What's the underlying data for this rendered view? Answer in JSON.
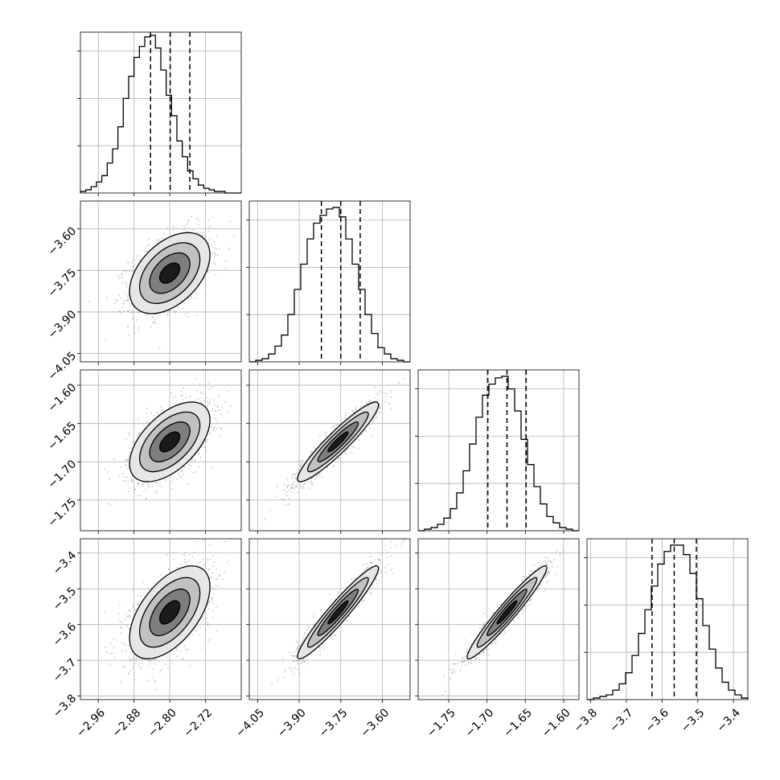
{
  "chart_data": {
    "type": "corner",
    "params": [
      {
        "id": "p0",
        "range": [
          -3.0,
          -2.64
        ],
        "ticks": [
          "-2.96",
          "-2.88",
          "-2.80",
          "-2.72"
        ],
        "tick_values": [
          -2.96,
          -2.88,
          -2.8,
          -2.72
        ],
        "quantiles": [
          -2.843,
          -2.799,
          -2.755
        ],
        "hist_heights": [
          0.01,
          0.02,
          0.04,
          0.07,
          0.11,
          0.19,
          0.28,
          0.42,
          0.6,
          0.74,
          0.86,
          0.93,
          0.99,
          1.0,
          0.92,
          0.78,
          0.62,
          0.49,
          0.33,
          0.23,
          0.14,
          0.09,
          0.05,
          0.03,
          0.02,
          0.01,
          0.01,
          0.0,
          0.0,
          0.0
        ]
      },
      {
        "id": "p1",
        "range": [
          -4.08,
          -3.5
        ],
        "ticks": [
          "-4.05",
          "-3.90",
          "-3.75",
          "-3.60"
        ],
        "tick_values": [
          -4.05,
          -3.9,
          -3.75,
          -3.6
        ],
        "quantiles": [
          -3.82,
          -3.75,
          -3.68
        ],
        "hist_heights": [
          0.0,
          0.01,
          0.02,
          0.05,
          0.1,
          0.17,
          0.3,
          0.46,
          0.62,
          0.78,
          0.88,
          0.93,
          0.97,
          0.98,
          0.92,
          0.78,
          0.62,
          0.46,
          0.3,
          0.18,
          0.09,
          0.05,
          0.02,
          0.01,
          0.0
        ]
      },
      {
        "id": "p2",
        "range": [
          -1.79,
          -1.58
        ],
        "ticks": [
          "-1.75",
          "-1.70",
          "-1.65",
          "-1.60"
        ],
        "tick_values": [
          -1.75,
          -1.7,
          -1.65,
          -1.6
        ],
        "quantiles": [
          -1.699,
          -1.674,
          -1.649
        ],
        "hist_heights": [
          0.0,
          0.01,
          0.02,
          0.04,
          0.08,
          0.14,
          0.24,
          0.38,
          0.55,
          0.72,
          0.86,
          0.93,
          0.97,
          0.98,
          0.9,
          0.76,
          0.58,
          0.42,
          0.28,
          0.17,
          0.09,
          0.05,
          0.02,
          0.01,
          0.0
        ]
      },
      {
        "id": "p3",
        "range": [
          -3.81,
          -3.36
        ],
        "ticks": [
          "-3.8",
          "-3.7",
          "-3.6",
          "-3.5",
          "-3.4"
        ],
        "tick_values": [
          -3.8,
          -3.7,
          -3.6,
          -3.5,
          -3.4
        ],
        "quantiles": [
          -3.628,
          -3.566,
          -3.504
        ],
        "hist_heights": [
          0.0,
          0.01,
          0.02,
          0.03,
          0.06,
          0.1,
          0.17,
          0.28,
          0.42,
          0.57,
          0.72,
          0.86,
          0.94,
          0.98,
          0.98,
          0.92,
          0.8,
          0.64,
          0.47,
          0.32,
          0.2,
          0.11,
          0.06,
          0.03,
          0.01
        ]
      }
    ],
    "pairs": [
      {
        "row": 1,
        "col": 0,
        "mean_x": -2.8,
        "mean_y": -3.76,
        "sd_x": 0.045,
        "sd_y": 0.073,
        "rho": 0.45
      },
      {
        "row": 2,
        "col": 0,
        "mean_x": -2.8,
        "mean_y": -1.674,
        "sd_x": 0.045,
        "sd_y": 0.026,
        "rho": 0.55
      },
      {
        "row": 2,
        "col": 1,
        "mean_x": -3.76,
        "mean_y": -1.674,
        "sd_x": 0.073,
        "sd_y": 0.026,
        "rho": 0.93
      },
      {
        "row": 3,
        "col": 0,
        "mean_x": -2.8,
        "mean_y": -3.566,
        "sd_x": 0.045,
        "sd_y": 0.065,
        "rho": 0.55
      },
      {
        "row": 3,
        "col": 1,
        "mean_x": -3.76,
        "mean_y": -3.566,
        "sd_x": 0.073,
        "sd_y": 0.065,
        "rho": 0.95
      },
      {
        "row": 3,
        "col": 2,
        "mean_x": -1.674,
        "mean_y": -3.566,
        "sd_x": 0.026,
        "sd_y": 0.065,
        "rho": 0.96
      }
    ],
    "contour_levels_sigma": [
      0.5,
      1.0,
      1.5,
      2.0
    ],
    "grid": true,
    "colors": {
      "line": "#000000",
      "grid": "#b0b0b0",
      "points": "#9a9a9a",
      "fill_dark": "#111111",
      "fill_mid": "#777777",
      "fill_light": "#bdbdbd",
      "fill_pale": "#e6e6e6"
    }
  }
}
